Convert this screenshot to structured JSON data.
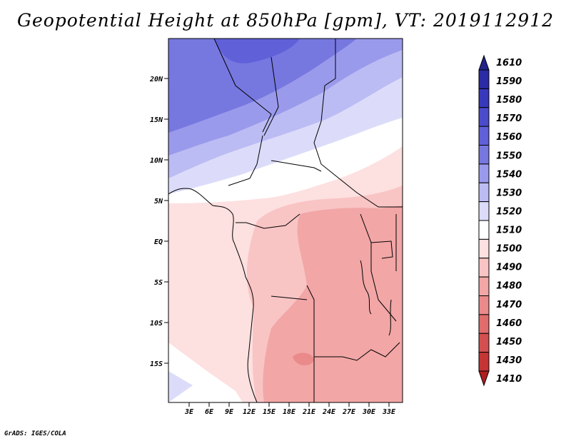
{
  "title": "Geopotential Height at 850hPa [gpm], VT: 2019112912",
  "credit": "GrADS: IGES/COLA",
  "map": {
    "variable": "Geopotential Height",
    "level": "850hPa",
    "units": "gpm",
    "valid_time": "2019112912",
    "lat_labels": [
      "20N",
      "15N",
      "10N",
      "5N",
      "EQ",
      "5S",
      "10S",
      "15S"
    ],
    "lon_labels": [
      "3E",
      "6E",
      "9E",
      "12E",
      "15E",
      "18E",
      "21E",
      "24E",
      "27E",
      "30E",
      "33E"
    ]
  },
  "colorbar": {
    "levels": [
      "1610",
      "1590",
      "1580",
      "1570",
      "1560",
      "1550",
      "1540",
      "1530",
      "1520",
      "1510",
      "1500",
      "1490",
      "1480",
      "1470",
      "1460",
      "1450",
      "1430",
      "1410"
    ],
    "colors": [
      "#23238b",
      "#2b2ba6",
      "#3838bc",
      "#4b4bcc",
      "#6060d8",
      "#7777e0",
      "#9a9aec",
      "#bcbcf4",
      "#dcdcfa",
      "#ffffff",
      "#fde0e0",
      "#f9c4c4",
      "#f2a6a6",
      "#ea8a8a",
      "#e06c6c",
      "#d44f4f",
      "#c53535",
      "#b01e1e"
    ]
  }
}
